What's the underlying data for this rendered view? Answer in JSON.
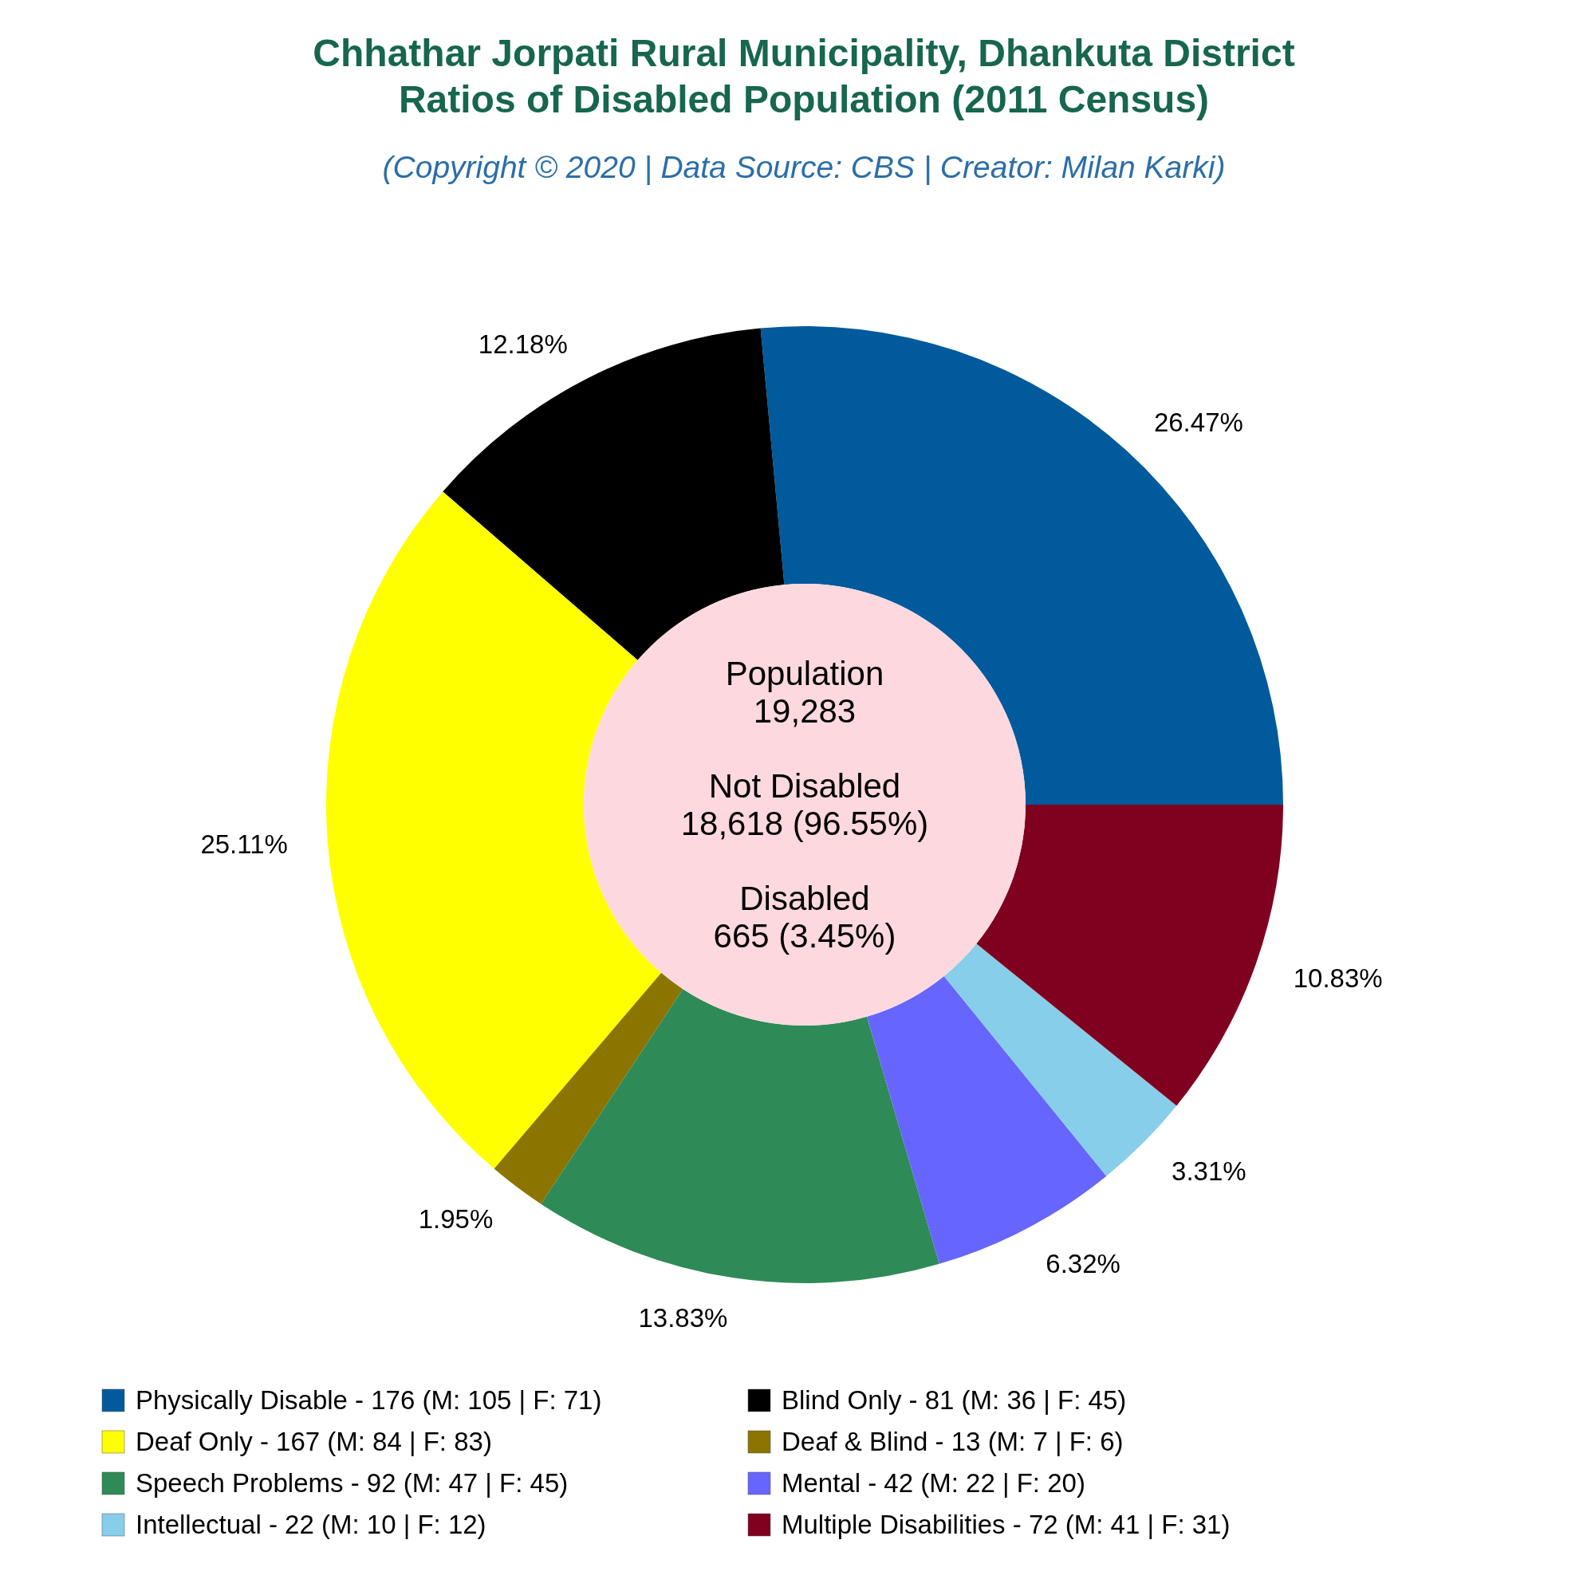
{
  "chart_data": {
    "type": "donut",
    "title": "Chhathar Jorpati Rural Municipality, Dhankuta District\nRatios of Disabled Population (2011 Census)",
    "subtitle": "(Copyright © 2020 | Data Source: CBS | Creator: Milan Karki)",
    "categories": [
      "Physically Disable - 176 (M: 105 | F: 71)",
      "Blind Only - 81 (M: 36 | F: 45)",
      "Deaf Only - 167 (M: 84 | F: 83)",
      "Deaf & Blind - 13 (M: 7 | F: 6)",
      "Speech Problems - 92 (M: 47 | F: 45)",
      "Mental - 42 (M: 22 | F: 20)",
      "Intellectual - 22 (M: 10 | F: 12)",
      "Multiple Disabilities - 72 (M: 41 | F: 31)"
    ],
    "values": [
      26.47,
      12.18,
      25.11,
      1.95,
      13.83,
      6.32,
      3.31,
      10.83
    ],
    "colors": [
      "#005a9c",
      "#000000",
      "#ffff00",
      "#8b7500",
      "#2e8b57",
      "#6666ff",
      "#87ceeb",
      "#800020"
    ],
    "value_labels": [
      "26.47%",
      "12.18%",
      "25.11%",
      "1.95%",
      "13.83%",
      "6.32%",
      "3.31%",
      "10.83%"
    ],
    "annotations": [
      "Population",
      "19,283",
      "Not Disabled",
      "18,618 (96.55%)",
      "Disabled",
      "665 (3.45%)"
    ],
    "legend": "bottom"
  }
}
